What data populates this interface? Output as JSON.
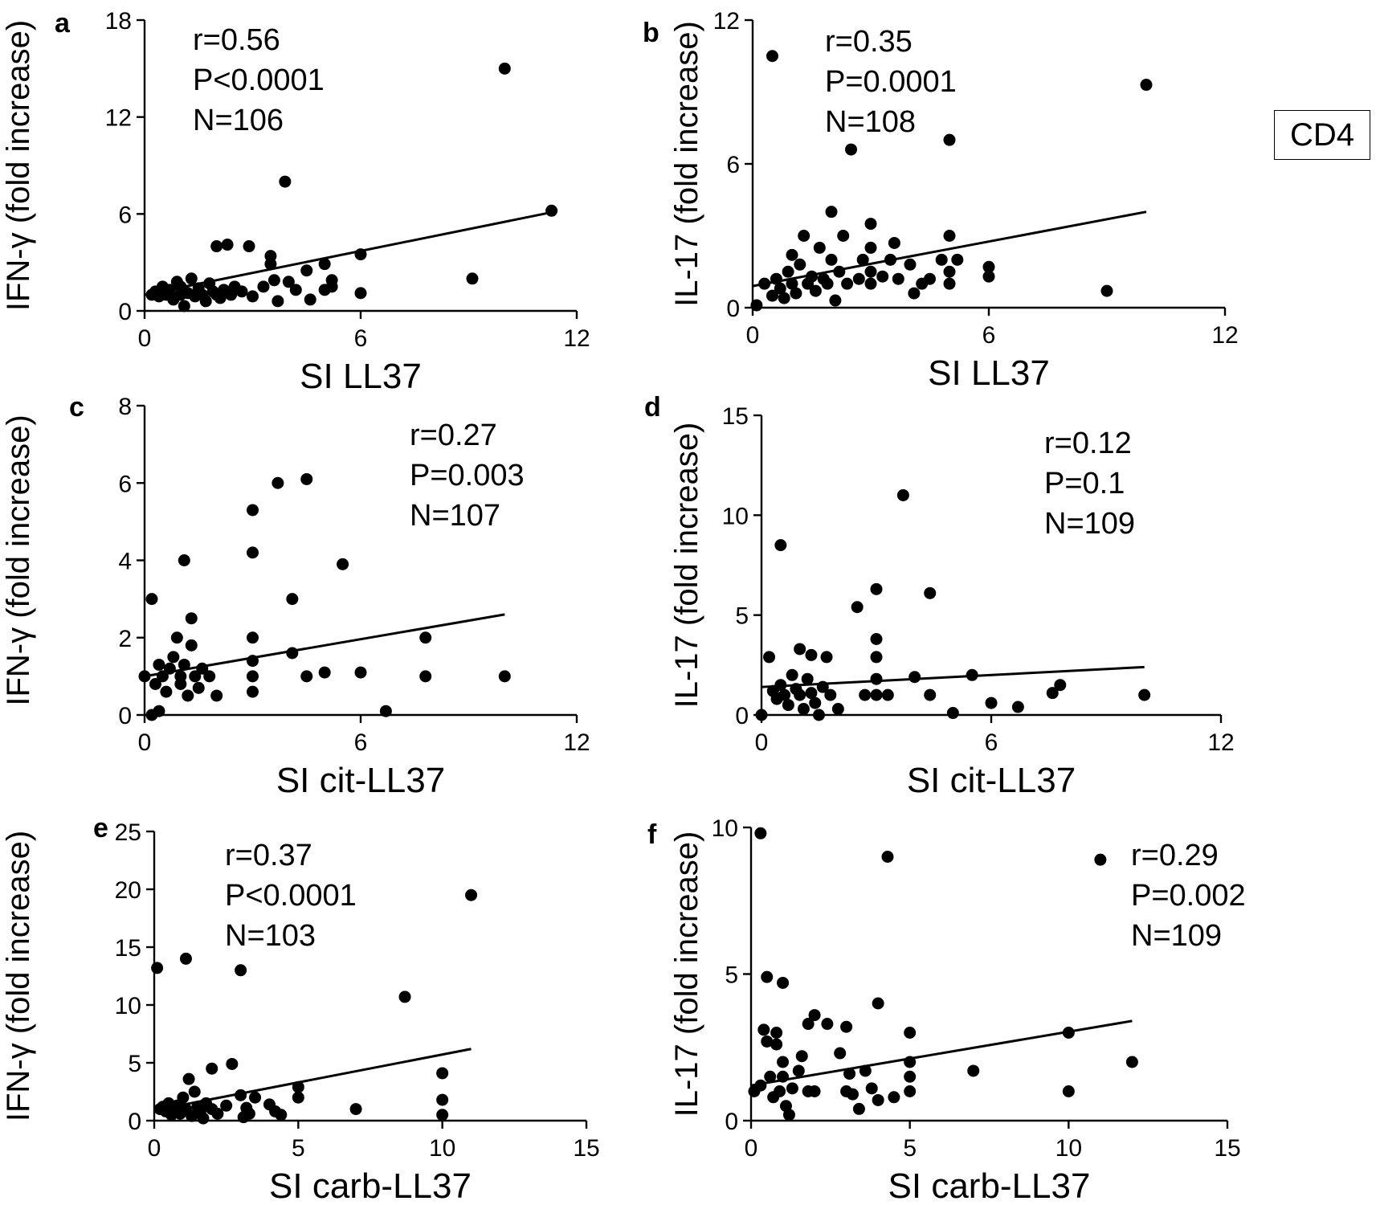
{
  "figure": {
    "legend_box": "CD4"
  },
  "chart_data": [
    {
      "type": "scatter",
      "panel": "a",
      "xlabel": "SI LL37",
      "ylabel": "IFN-γ (fold increase)",
      "xlim": [
        0,
        12
      ],
      "ylim": [
        0,
        18
      ],
      "xticks": [
        0,
        6,
        12
      ],
      "yticks": [
        0,
        6,
        12,
        18
      ],
      "stats": [
        "r=0.56",
        "P<0.0001",
        "N=106"
      ],
      "stats_position": "top-left",
      "fit": {
        "x": [
          0,
          11.3
        ],
        "y": [
          1.0,
          6.1
        ]
      },
      "points": [
        [
          0.2,
          1.0
        ],
        [
          0.3,
          1.2
        ],
        [
          0.4,
          0.9
        ],
        [
          0.5,
          1.5
        ],
        [
          0.6,
          1.0
        ],
        [
          0.7,
          1.3
        ],
        [
          0.8,
          0.7
        ],
        [
          0.9,
          1.8
        ],
        [
          1.0,
          1.0
        ],
        [
          1.0,
          1.5
        ],
        [
          1.1,
          0.3
        ],
        [
          1.2,
          1.1
        ],
        [
          1.3,
          2.0
        ],
        [
          1.4,
          0.9
        ],
        [
          1.5,
          1.4
        ],
        [
          1.6,
          1.0
        ],
        [
          1.7,
          0.6
        ],
        [
          1.8,
          1.7
        ],
        [
          1.9,
          1.2
        ],
        [
          2.0,
          1.0
        ],
        [
          2.0,
          4.0
        ],
        [
          2.1,
          0.8
        ],
        [
          2.2,
          1.3
        ],
        [
          2.3,
          4.1
        ],
        [
          2.4,
          1.0
        ],
        [
          2.5,
          1.5
        ],
        [
          2.7,
          1.2
        ],
        [
          2.9,
          4.0
        ],
        [
          3.0,
          0.9
        ],
        [
          3.3,
          1.5
        ],
        [
          3.5,
          3.4
        ],
        [
          3.5,
          2.9
        ],
        [
          3.6,
          1.9
        ],
        [
          3.7,
          0.6
        ],
        [
          3.9,
          8.0
        ],
        [
          4.0,
          1.8
        ],
        [
          4.2,
          1.3
        ],
        [
          4.5,
          2.5
        ],
        [
          4.6,
          0.7
        ],
        [
          5.0,
          2.9
        ],
        [
          5.0,
          1.3
        ],
        [
          5.2,
          1.9
        ],
        [
          5.2,
          1.5
        ],
        [
          6.0,
          3.5
        ],
        [
          6.0,
          1.1
        ],
        [
          9.1,
          2.0
        ],
        [
          10.0,
          15.0
        ],
        [
          11.3,
          6.2
        ]
      ]
    },
    {
      "type": "scatter",
      "panel": "b",
      "xlabel": "SI LL37",
      "ylabel": "IL-17 (fold increase)",
      "xlim": [
        0,
        12
      ],
      "ylim": [
        0,
        12
      ],
      "xticks": [
        0,
        6,
        12
      ],
      "yticks": [
        0,
        6,
        12
      ],
      "stats": [
        "r=0.35",
        "P=0.0001",
        "N=108"
      ],
      "stats_position": "top-left",
      "fit": {
        "x": [
          0,
          10
        ],
        "y": [
          0.9,
          4.0
        ]
      },
      "points": [
        [
          0.1,
          0.1
        ],
        [
          0.3,
          1.0
        ],
        [
          0.5,
          0.5
        ],
        [
          0.5,
          10.5
        ],
        [
          0.6,
          1.2
        ],
        [
          0.7,
          0.8
        ],
        [
          0.8,
          0.4
        ],
        [
          0.9,
          1.5
        ],
        [
          1.0,
          1.0
        ],
        [
          1.0,
          2.2
        ],
        [
          1.1,
          0.6
        ],
        [
          1.2,
          1.8
        ],
        [
          1.3,
          3.0
        ],
        [
          1.4,
          1.0
        ],
        [
          1.5,
          1.3
        ],
        [
          1.6,
          0.7
        ],
        [
          1.7,
          2.5
        ],
        [
          1.8,
          1.2
        ],
        [
          1.9,
          1.0
        ],
        [
          2.0,
          2.0
        ],
        [
          2.0,
          4.0
        ],
        [
          2.1,
          0.3
        ],
        [
          2.2,
          1.5
        ],
        [
          2.3,
          3.0
        ],
        [
          2.4,
          1.0
        ],
        [
          2.5,
          6.6
        ],
        [
          2.7,
          1.2
        ],
        [
          2.8,
          2.0
        ],
        [
          3.0,
          3.5
        ],
        [
          3.0,
          2.5
        ],
        [
          3.0,
          1.5
        ],
        [
          3.0,
          1.0
        ],
        [
          3.3,
          1.3
        ],
        [
          3.5,
          2.0
        ],
        [
          3.6,
          2.7
        ],
        [
          3.7,
          1.2
        ],
        [
          4.0,
          1.8
        ],
        [
          4.1,
          0.6
        ],
        [
          4.3,
          1.0
        ],
        [
          4.5,
          1.2
        ],
        [
          4.8,
          2.0
        ],
        [
          5.0,
          7.0
        ],
        [
          5.0,
          3.0
        ],
        [
          5.0,
          1.5
        ],
        [
          5.0,
          1.0
        ],
        [
          5.2,
          2.0
        ],
        [
          6.0,
          1.7
        ],
        [
          6.0,
          1.3
        ],
        [
          9.0,
          0.7
        ],
        [
          10.0,
          9.3
        ]
      ]
    },
    {
      "type": "scatter",
      "panel": "c",
      "xlabel": "SI cit-LL37",
      "ylabel": "IFN-γ (fold increase)",
      "xlim": [
        0,
        12
      ],
      "ylim": [
        0,
        8
      ],
      "xticks": [
        0,
        6,
        12
      ],
      "yticks": [
        0,
        2,
        4,
        6,
        8
      ],
      "stats": [
        "r=0.27",
        "P=0.003",
        "N=107"
      ],
      "stats_position": "top-right",
      "fit": {
        "x": [
          0,
          10
        ],
        "y": [
          1.0,
          2.6
        ]
      },
      "points": [
        [
          0.0,
          1.0
        ],
        [
          0.2,
          3.0
        ],
        [
          0.2,
          0.0
        ],
        [
          0.3,
          0.8
        ],
        [
          0.4,
          1.3
        ],
        [
          0.4,
          0.1
        ],
        [
          0.5,
          1.0
        ],
        [
          0.6,
          0.6
        ],
        [
          0.7,
          1.2
        ],
        [
          0.8,
          1.5
        ],
        [
          0.9,
          2.0
        ],
        [
          1.0,
          1.0
        ],
        [
          1.0,
          0.8
        ],
        [
          1.1,
          4.0
        ],
        [
          1.1,
          1.3
        ],
        [
          1.2,
          0.5
        ],
        [
          1.3,
          2.5
        ],
        [
          1.3,
          1.8
        ],
        [
          1.4,
          1.0
        ],
        [
          1.5,
          0.7
        ],
        [
          1.6,
          1.2
        ],
        [
          1.8,
          1.0
        ],
        [
          2.0,
          0.5
        ],
        [
          3.0,
          5.3
        ],
        [
          3.0,
          4.2
        ],
        [
          3.0,
          2.0
        ],
        [
          3.0,
          1.4
        ],
        [
          3.0,
          1.0
        ],
        [
          3.0,
          0.6
        ],
        [
          3.7,
          6.0
        ],
        [
          4.1,
          3.0
        ],
        [
          4.1,
          1.6
        ],
        [
          4.5,
          6.1
        ],
        [
          4.5,
          1.0
        ],
        [
          5.0,
          1.1
        ],
        [
          5.5,
          3.9
        ],
        [
          6.0,
          1.1
        ],
        [
          6.7,
          0.1
        ],
        [
          7.8,
          2.0
        ],
        [
          7.8,
          1.0
        ],
        [
          10.0,
          1.0
        ]
      ]
    },
    {
      "type": "scatter",
      "panel": "d",
      "xlabel": "SI cit-LL37",
      "ylabel": "IL-17 (fold increase)",
      "xlim": [
        0,
        12
      ],
      "ylim": [
        0,
        15
      ],
      "xticks": [
        0,
        6,
        12
      ],
      "yticks": [
        0,
        5,
        10,
        15
      ],
      "stats": [
        "r=0.12",
        "P=0.1",
        "N=109"
      ],
      "stats_position": "top-right",
      "fit": {
        "x": [
          0,
          10
        ],
        "y": [
          1.4,
          2.4
        ]
      },
      "points": [
        [
          0.0,
          0.0
        ],
        [
          0.2,
          2.9
        ],
        [
          0.3,
          1.2
        ],
        [
          0.4,
          0.8
        ],
        [
          0.5,
          8.5
        ],
        [
          0.5,
          1.5
        ],
        [
          0.6,
          1.0
        ],
        [
          0.7,
          0.5
        ],
        [
          0.8,
          2.0
        ],
        [
          0.9,
          1.3
        ],
        [
          1.0,
          3.3
        ],
        [
          1.0,
          1.0
        ],
        [
          1.1,
          0.3
        ],
        [
          1.2,
          1.8
        ],
        [
          1.3,
          3.0
        ],
        [
          1.3,
          1.1
        ],
        [
          1.4,
          0.6
        ],
        [
          1.5,
          0.0
        ],
        [
          1.6,
          1.4
        ],
        [
          1.7,
          2.9
        ],
        [
          1.8,
          1.0
        ],
        [
          2.0,
          0.3
        ],
        [
          2.5,
          5.4
        ],
        [
          2.7,
          1.0
        ],
        [
          3.0,
          6.3
        ],
        [
          3.0,
          3.8
        ],
        [
          3.0,
          2.9
        ],
        [
          3.0,
          1.8
        ],
        [
          3.0,
          1.0
        ],
        [
          3.3,
          1.0
        ],
        [
          3.7,
          11.0
        ],
        [
          4.0,
          1.9
        ],
        [
          4.4,
          6.1
        ],
        [
          4.4,
          1.0
        ],
        [
          5.0,
          0.1
        ],
        [
          5.5,
          2.0
        ],
        [
          6.0,
          0.6
        ],
        [
          6.7,
          0.4
        ],
        [
          7.6,
          1.1
        ],
        [
          7.8,
          1.5
        ],
        [
          10.0,
          1.0
        ]
      ]
    },
    {
      "type": "scatter",
      "panel": "e",
      "xlabel": "SI carb-LL37",
      "ylabel": "IFN-γ (fold increase)",
      "xlim": [
        0,
        15
      ],
      "ylim": [
        0,
        25
      ],
      "xticks": [
        0,
        5,
        10,
        15
      ],
      "yticks": [
        0,
        5,
        10,
        15,
        20,
        25
      ],
      "stats": [
        "r=0.37",
        "P<0.0001",
        "N=103"
      ],
      "stats_position": "top-left",
      "fit": {
        "x": [
          0,
          11
        ],
        "y": [
          0.9,
          6.2
        ]
      },
      "points": [
        [
          0.1,
          13.2
        ],
        [
          0.2,
          1.0
        ],
        [
          0.3,
          1.2
        ],
        [
          0.4,
          0.8
        ],
        [
          0.5,
          1.5
        ],
        [
          0.6,
          0.5
        ],
        [
          0.7,
          1.0
        ],
        [
          0.8,
          1.3
        ],
        [
          0.9,
          0.6
        ],
        [
          1.0,
          2.0
        ],
        [
          1.1,
          14.0
        ],
        [
          1.1,
          1.0
        ],
        [
          1.2,
          3.6
        ],
        [
          1.3,
          0.4
        ],
        [
          1.4,
          2.5
        ],
        [
          1.5,
          1.2
        ],
        [
          1.6,
          0.8
        ],
        [
          1.7,
          0.2
        ],
        [
          1.8,
          1.5
        ],
        [
          2.0,
          4.5
        ],
        [
          2.0,
          1.0
        ],
        [
          2.2,
          0.6
        ],
        [
          2.5,
          1.3
        ],
        [
          2.7,
          4.9
        ],
        [
          3.0,
          13.0
        ],
        [
          3.0,
          2.2
        ],
        [
          3.1,
          0.3
        ],
        [
          3.2,
          1.1
        ],
        [
          3.3,
          0.6
        ],
        [
          3.5,
          2.0
        ],
        [
          4.0,
          1.4
        ],
        [
          4.2,
          0.8
        ],
        [
          4.4,
          0.5
        ],
        [
          5.0,
          2.9
        ],
        [
          5.0,
          2.0
        ],
        [
          7.0,
          1.0
        ],
        [
          8.7,
          10.7
        ],
        [
          10.0,
          4.1
        ],
        [
          10.0,
          1.8
        ],
        [
          10.0,
          0.5
        ],
        [
          11.0,
          19.5
        ]
      ]
    },
    {
      "type": "scatter",
      "panel": "f",
      "xlabel": "SI carb-LL37",
      "ylabel": "IL-17 (fold increase)",
      "xlim": [
        0,
        15
      ],
      "ylim": [
        0,
        10
      ],
      "xticks": [
        0,
        5,
        10,
        15
      ],
      "yticks": [
        0,
        5,
        10
      ],
      "stats": [
        "r=0.29",
        "P=0.002",
        "N=109"
      ],
      "stats_position": "top-right",
      "fit": {
        "x": [
          0,
          12
        ],
        "y": [
          1.2,
          3.4
        ]
      },
      "points": [
        [
          0.1,
          1.0
        ],
        [
          0.3,
          9.8
        ],
        [
          0.3,
          1.2
        ],
        [
          0.4,
          3.1
        ],
        [
          0.5,
          4.9
        ],
        [
          0.5,
          2.7
        ],
        [
          0.6,
          1.5
        ],
        [
          0.7,
          0.8
        ],
        [
          0.8,
          3.0
        ],
        [
          0.8,
          2.6
        ],
        [
          0.9,
          1.0
        ],
        [
          1.0,
          2.0
        ],
        [
          1.0,
          4.7
        ],
        [
          1.0,
          1.5
        ],
        [
          1.1,
          0.5
        ],
        [
          1.2,
          0.2
        ],
        [
          1.3,
          1.1
        ],
        [
          1.5,
          1.7
        ],
        [
          1.6,
          2.2
        ],
        [
          1.8,
          1.0
        ],
        [
          1.8,
          3.3
        ],
        [
          2.0,
          3.6
        ],
        [
          2.0,
          1.0
        ],
        [
          2.4,
          3.3
        ],
        [
          2.8,
          2.3
        ],
        [
          3.0,
          3.2
        ],
        [
          3.0,
          1.0
        ],
        [
          3.1,
          1.6
        ],
        [
          3.2,
          0.9
        ],
        [
          3.4,
          0.4
        ],
        [
          3.6,
          1.7
        ],
        [
          3.8,
          1.1
        ],
        [
          4.0,
          4.0
        ],
        [
          4.0,
          0.7
        ],
        [
          4.3,
          9.0
        ],
        [
          4.5,
          0.8
        ],
        [
          5.0,
          3.0
        ],
        [
          5.0,
          2.0
        ],
        [
          5.0,
          1.5
        ],
        [
          5.0,
          1.0
        ],
        [
          7.0,
          1.7
        ],
        [
          10.0,
          3.0
        ],
        [
          10.0,
          1.0
        ],
        [
          11.0,
          8.9
        ],
        [
          12.0,
          2.0
        ]
      ]
    }
  ]
}
